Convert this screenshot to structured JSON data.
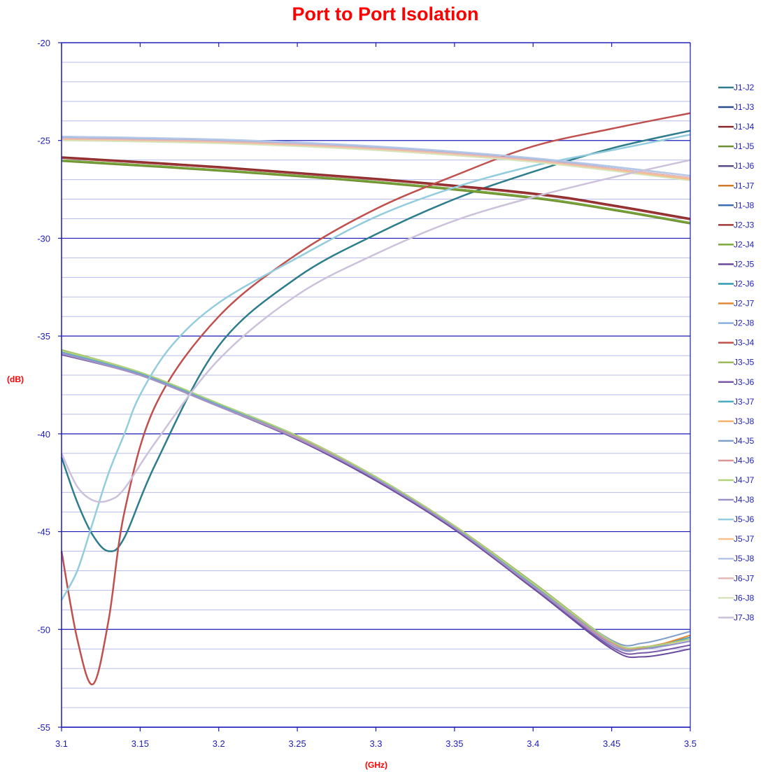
{
  "chart_data": {
    "type": "line",
    "title": "Port to Port Isolation",
    "xlabel": "(GHz)",
    "ylabel": "(dB)",
    "xlim": [
      3.1,
      3.5
    ],
    "ylim": [
      -55,
      -20
    ],
    "x_ticks": [
      3.1,
      3.15,
      3.2,
      3.25,
      3.3,
      3.35,
      3.4,
      3.45,
      3.5
    ],
    "x_tick_labels": [
      "3.1",
      "3.15",
      "3.2",
      "3.25",
      "3.3",
      "3.35",
      "3.4",
      "3.45",
      "3.5"
    ],
    "y_ticks": [
      -20,
      -25,
      -30,
      -35,
      -40,
      -45,
      -50,
      -55
    ],
    "y_tick_labels": [
      "-20",
      "-25",
      "-30",
      "-35",
      "-40",
      "-45",
      "-50",
      "-55"
    ],
    "y_minor_step": 1,
    "grid": true,
    "legend_position": "right",
    "colors": {
      "major_grid": "#1a1ab8",
      "minor_grid": "#b8bce8",
      "axis": "#1a1ab8",
      "title": "#ff0000"
    },
    "series": [
      {
        "name": "J1-J2",
        "color": "#2e7d8c",
        "width": 2.5,
        "x": [
          3.1,
          3.11,
          3.12,
          3.13,
          3.14,
          3.16,
          3.2,
          3.25,
          3.3,
          3.35,
          3.4,
          3.45,
          3.5
        ],
        "y": [
          -41.2,
          -43.5,
          -45.2,
          -46.0,
          -45.3,
          -41.5,
          -35.5,
          -32.0,
          -29.8,
          -28.0,
          -26.6,
          -25.4,
          -24.5
        ]
      },
      {
        "name": "J1-J3",
        "color": "#2a4d8f",
        "width": 2,
        "x": [
          3.1,
          3.2,
          3.3,
          3.4,
          3.45,
          3.5
        ],
        "y": [
          -26.0,
          -26.5,
          -27.1,
          -27.9,
          -28.5,
          -29.2
        ]
      },
      {
        "name": "J1-J4",
        "color": "#8b2a2a",
        "width": 2.5,
        "x": [
          3.1,
          3.2,
          3.3,
          3.4,
          3.45,
          3.5
        ],
        "y": [
          -25.85,
          -26.35,
          -26.95,
          -27.7,
          -28.3,
          -29.0
        ]
      },
      {
        "name": "J1-J5",
        "color": "#6e8f30",
        "width": 2.5,
        "x": [
          3.1,
          3.2,
          3.3,
          3.4,
          3.45,
          3.5
        ],
        "y": [
          -26.05,
          -26.55,
          -27.15,
          -27.95,
          -28.55,
          -29.25
        ]
      },
      {
        "name": "J1-J6",
        "color": "#5a4a8c",
        "width": 2,
        "x": [
          3.1,
          3.15,
          3.2,
          3.25,
          3.3,
          3.35,
          3.4,
          3.45,
          3.47,
          3.5
        ],
        "y": [
          -35.9,
          -37.0,
          -38.6,
          -40.2,
          -42.3,
          -44.8,
          -47.9,
          -50.7,
          -50.9,
          -50.5
        ]
      },
      {
        "name": "J1-J7",
        "color": "#d07a2a",
        "width": 2,
        "x": [
          3.1,
          3.15,
          3.2,
          3.25,
          3.3,
          3.35,
          3.4,
          3.45,
          3.47,
          3.5
        ],
        "y": [
          -35.8,
          -36.9,
          -38.5,
          -40.1,
          -42.2,
          -44.7,
          -47.6,
          -50.6,
          -50.9,
          -50.4
        ]
      },
      {
        "name": "J1-J8",
        "color": "#3b6fb5",
        "width": 2,
        "x": [
          3.1,
          3.2,
          3.3,
          3.4,
          3.5
        ],
        "y": [
          -24.9,
          -25.05,
          -25.4,
          -26.0,
          -26.9
        ]
      },
      {
        "name": "J2-J3",
        "color": "#a03a3a",
        "width": 2,
        "x": [
          3.1,
          3.2,
          3.3,
          3.4,
          3.45,
          3.5
        ],
        "y": [
          -25.9,
          -26.4,
          -27.0,
          -27.75,
          -28.35,
          -29.05
        ]
      },
      {
        "name": "J2-J4",
        "color": "#7aa83a",
        "width": 2,
        "x": [
          3.1,
          3.2,
          3.3,
          3.4,
          3.45,
          3.5
        ],
        "y": [
          -26.0,
          -26.5,
          -27.1,
          -27.9,
          -28.5,
          -29.2
        ]
      },
      {
        "name": "J2-J5",
        "color": "#6a4a9c",
        "width": 2,
        "x": [
          3.1,
          3.15,
          3.2,
          3.25,
          3.3,
          3.35,
          3.4,
          3.45,
          3.47,
          3.5
        ],
        "y": [
          -35.95,
          -37.0,
          -38.6,
          -40.3,
          -42.4,
          -44.9,
          -47.9,
          -51.0,
          -51.4,
          -51.0
        ]
      },
      {
        "name": "J2-J6",
        "color": "#2f9ab0",
        "width": 2,
        "x": [
          3.1,
          3.15,
          3.2,
          3.25,
          3.3,
          3.35,
          3.4,
          3.45,
          3.47,
          3.5
        ],
        "y": [
          -35.85,
          -36.95,
          -38.55,
          -40.2,
          -42.3,
          -44.8,
          -47.8,
          -50.8,
          -51.0,
          -50.6
        ]
      },
      {
        "name": "J2-J7",
        "color": "#e08a35",
        "width": 2,
        "x": [
          3.1,
          3.15,
          3.2,
          3.25,
          3.3,
          3.35,
          3.4,
          3.45,
          3.47,
          3.5
        ],
        "y": [
          -35.8,
          -36.9,
          -38.5,
          -40.1,
          -42.2,
          -44.7,
          -47.6,
          -50.6,
          -50.95,
          -50.3
        ]
      },
      {
        "name": "J2-J8",
        "color": "#8aaee0",
        "width": 1.5,
        "x": [
          3.1,
          3.2,
          3.3,
          3.4,
          3.5
        ],
        "y": [
          -24.85,
          -25.0,
          -25.35,
          -25.95,
          -26.8
        ]
      },
      {
        "name": "J3-J4",
        "color": "#c0504d",
        "width": 2.5,
        "x": [
          3.1,
          3.11,
          3.12,
          3.13,
          3.14,
          3.16,
          3.2,
          3.25,
          3.3,
          3.35,
          3.4,
          3.45,
          3.5
        ],
        "y": [
          -46.0,
          -50.5,
          -52.8,
          -49.5,
          -44.0,
          -38.5,
          -34.0,
          -30.8,
          -28.5,
          -26.8,
          -25.3,
          -24.4,
          -23.6
        ]
      },
      {
        "name": "J3-J5",
        "color": "#9bbb59",
        "width": 2,
        "x": [
          3.1,
          3.15,
          3.2,
          3.25,
          3.3,
          3.35,
          3.4,
          3.45,
          3.47,
          3.5
        ],
        "y": [
          -35.7,
          -36.85,
          -38.45,
          -40.1,
          -42.2,
          -44.7,
          -47.6,
          -50.6,
          -50.9,
          -50.5
        ]
      },
      {
        "name": "J3-J6",
        "color": "#7a5aa8",
        "width": 2,
        "x": [
          3.1,
          3.15,
          3.2,
          3.25,
          3.3,
          3.35,
          3.4,
          3.45,
          3.47,
          3.5
        ],
        "y": [
          -35.9,
          -37.0,
          -38.6,
          -40.25,
          -42.35,
          -44.85,
          -47.85,
          -50.9,
          -51.2,
          -50.8
        ]
      },
      {
        "name": "J3-J7",
        "color": "#4bacc6",
        "width": 2,
        "x": [
          3.1,
          3.15,
          3.2,
          3.25,
          3.3,
          3.35,
          3.4,
          3.45,
          3.47,
          3.5
        ],
        "y": [
          -35.8,
          -36.9,
          -38.5,
          -40.15,
          -42.25,
          -44.75,
          -47.7,
          -50.7,
          -51.0,
          -50.4
        ]
      },
      {
        "name": "J3-J8",
        "color": "#f6b26b",
        "width": 1.5,
        "x": [
          3.1,
          3.2,
          3.3,
          3.4,
          3.5
        ],
        "y": [
          -25.0,
          -25.1,
          -25.5,
          -26.1,
          -27.0
        ]
      },
      {
        "name": "J4-J5",
        "color": "#7f9fcc",
        "width": 2,
        "x": [
          3.1,
          3.15,
          3.2,
          3.25,
          3.3,
          3.35,
          3.4,
          3.45,
          3.47,
          3.5
        ],
        "y": [
          -35.85,
          -36.95,
          -38.55,
          -40.2,
          -42.3,
          -44.8,
          -47.75,
          -50.55,
          -50.7,
          -50.1
        ]
      },
      {
        "name": "J4-J6",
        "color": "#d99694",
        "width": 2,
        "x": [
          3.1,
          3.15,
          3.2,
          3.25,
          3.3,
          3.35,
          3.4,
          3.45,
          3.47,
          3.5
        ],
        "y": [
          -35.9,
          -37.0,
          -38.6,
          -40.2,
          -42.3,
          -44.8,
          -47.8,
          -50.7,
          -50.9,
          -50.5
        ]
      },
      {
        "name": "J4-J7",
        "color": "#b3d27a",
        "width": 2,
        "x": [
          3.1,
          3.15,
          3.2,
          3.25,
          3.3,
          3.35,
          3.4,
          3.45,
          3.47,
          3.5
        ],
        "y": [
          -35.75,
          -36.85,
          -38.45,
          -40.1,
          -42.2,
          -44.7,
          -47.65,
          -50.6,
          -50.9,
          -50.5
        ]
      },
      {
        "name": "J4-J8",
        "color": "#9f92c8",
        "width": 2,
        "x": [
          3.1,
          3.15,
          3.2,
          3.25,
          3.3,
          3.35,
          3.4,
          3.45,
          3.47,
          3.5
        ],
        "y": [
          -35.9,
          -37.0,
          -38.6,
          -40.25,
          -42.3,
          -44.8,
          -47.8,
          -50.8,
          -51.0,
          -50.6
        ]
      },
      {
        "name": "J5-J6",
        "color": "#93cddd",
        "width": 2.5,
        "x": [
          3.1,
          3.11,
          3.12,
          3.13,
          3.14,
          3.15,
          3.17,
          3.2,
          3.25,
          3.3,
          3.35,
          3.4,
          3.45,
          3.5
        ],
        "y": [
          -48.5,
          -47.0,
          -44.5,
          -42.0,
          -40.0,
          -38.0,
          -35.5,
          -33.3,
          -31.0,
          -28.9,
          -27.4,
          -26.3,
          -25.5,
          -24.7
        ]
      },
      {
        "name": "J5-J7",
        "color": "#fac090",
        "width": 2,
        "x": [
          3.1,
          3.2,
          3.3,
          3.4,
          3.5
        ],
        "y": [
          -24.95,
          -25.1,
          -25.45,
          -26.05,
          -26.95
        ]
      },
      {
        "name": "J5-J8",
        "color": "#b4c7e7",
        "width": 2.5,
        "x": [
          3.1,
          3.2,
          3.3,
          3.4,
          3.5
        ],
        "y": [
          -24.8,
          -24.95,
          -25.3,
          -25.9,
          -26.8
        ]
      },
      {
        "name": "J6-J7",
        "color": "#e6b9b8",
        "width": 2,
        "x": [
          3.1,
          3.2,
          3.3,
          3.4,
          3.5
        ],
        "y": [
          -24.9,
          -25.05,
          -25.4,
          -26.0,
          -26.9
        ]
      },
      {
        "name": "J6-J8",
        "color": "#d7e4bd",
        "width": 2,
        "x": [
          3.1,
          3.2,
          3.3,
          3.4,
          3.5
        ],
        "y": [
          -25.0,
          -25.15,
          -25.5,
          -26.1,
          -27.05
        ]
      },
      {
        "name": "J7-J8",
        "color": "#ccc1da",
        "width": 2.5,
        "x": [
          3.1,
          3.11,
          3.12,
          3.13,
          3.14,
          3.16,
          3.2,
          3.25,
          3.3,
          3.35,
          3.4,
          3.45,
          3.5
        ],
        "y": [
          -41.0,
          -42.7,
          -43.4,
          -43.4,
          -42.8,
          -40.4,
          -36.2,
          -32.9,
          -30.8,
          -29.1,
          -27.9,
          -26.9,
          -26.0
        ]
      }
    ]
  }
}
